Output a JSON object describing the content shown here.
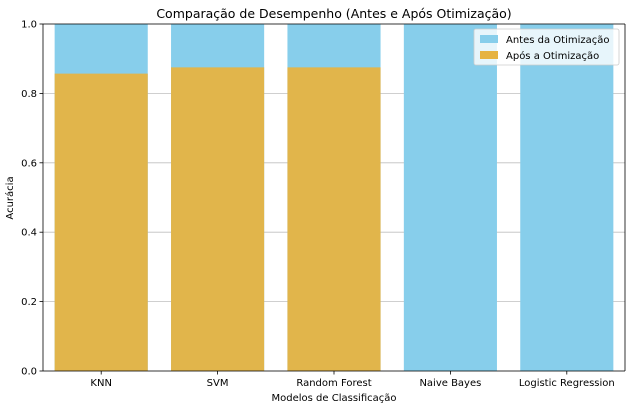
{
  "chart_data": {
    "type": "bar",
    "title": "Comparação de Desempenho (Antes e Após Otimização)",
    "xlabel": "Modelos de Classificação",
    "ylabel": "Acurácia",
    "categories": [
      "KNN",
      "SVM",
      "Random Forest",
      "Naive Bayes",
      "Logistic Regression"
    ],
    "series": [
      {
        "name": "Antes da Otimização",
        "color": "#87ceeb",
        "values": [
          1.0,
          1.0,
          1.0,
          1.0,
          1.0
        ]
      },
      {
        "name": "Após a Otimização",
        "color": "#e6b342",
        "values": [
          0.857,
          0.875,
          0.875,
          0.0,
          0.0
        ]
      }
    ],
    "ylim": [
      0,
      1.0
    ],
    "yticks": [
      "0.0",
      "0.2",
      "0.4",
      "0.6",
      "0.8",
      "1.0"
    ],
    "grid": "y",
    "legend_position": "top-right"
  }
}
